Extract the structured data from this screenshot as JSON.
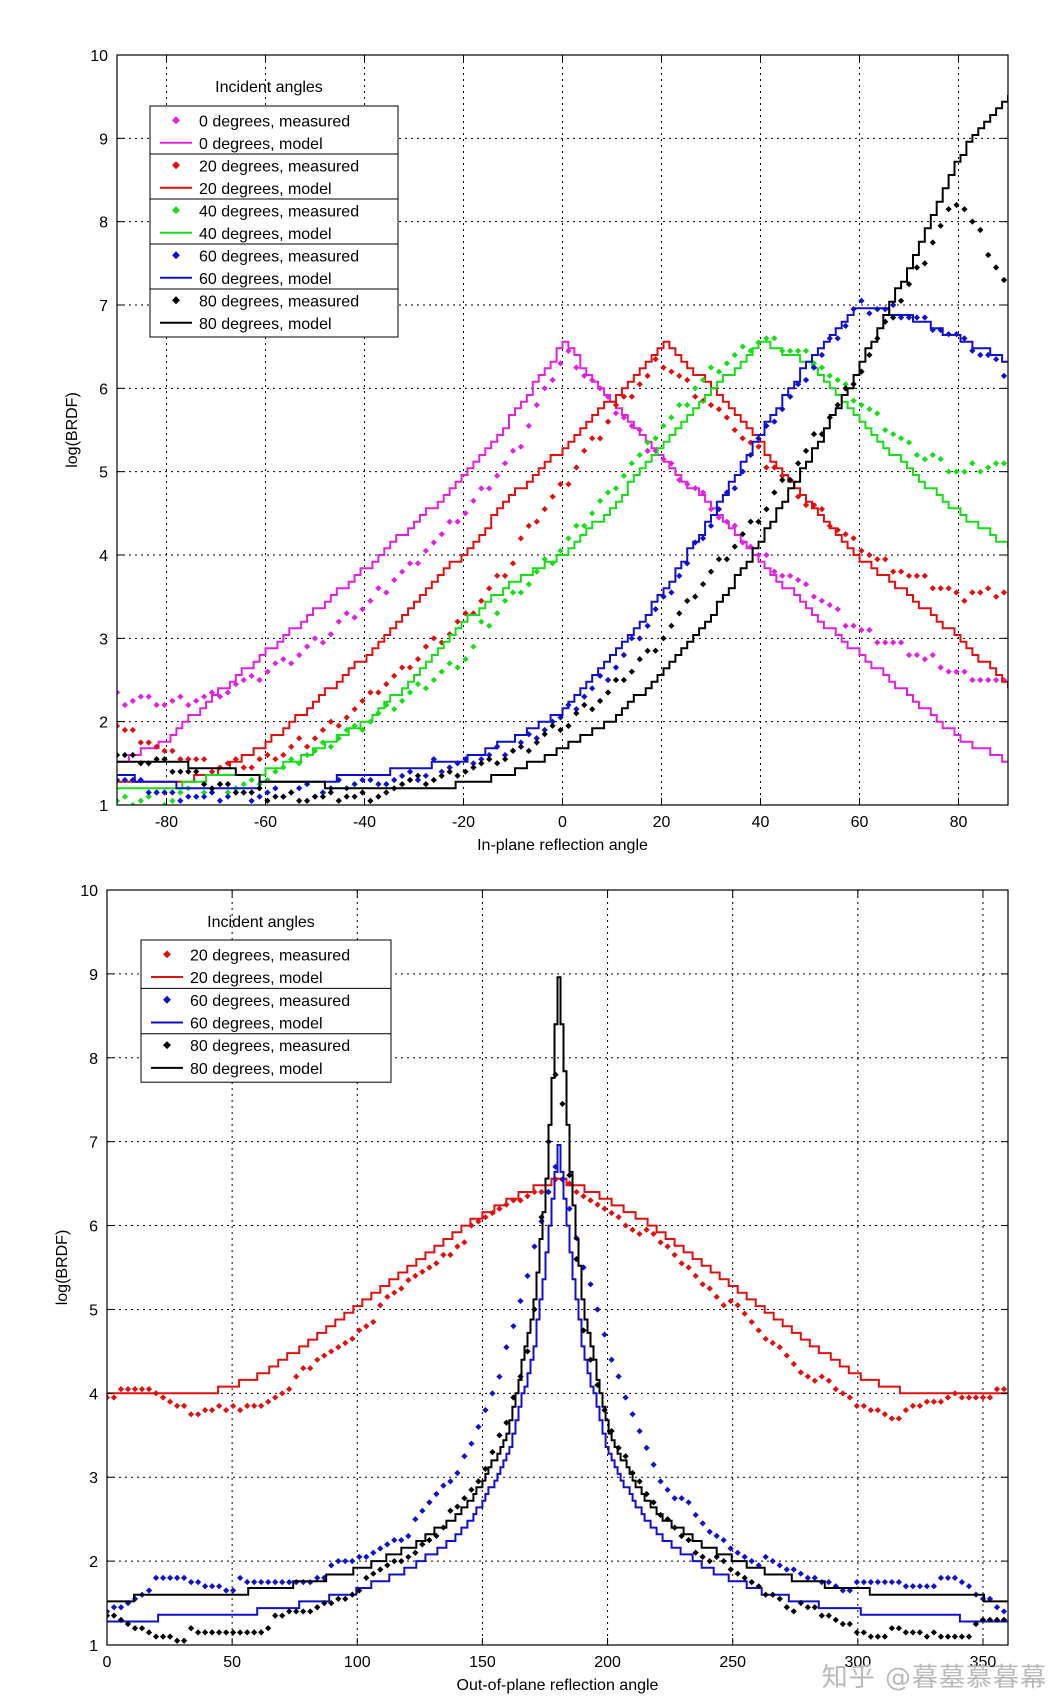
{
  "watermark": "知乎 @暮墓慕暮幕",
  "chart_data": [
    {
      "type": "line",
      "title": "",
      "xlabel": "In-plane reflection angle",
      "ylabel": "log(BRDF)",
      "xlim": [
        -90,
        90
      ],
      "ylim": [
        1,
        10
      ],
      "xticks": [
        -80,
        -60,
        -40,
        -20,
        0,
        20,
        40,
        60,
        80
      ],
      "yticks": [
        1,
        2,
        3,
        4,
        5,
        6,
        7,
        8,
        9,
        10
      ],
      "grid": true,
      "legend": {
        "title": "Incident angles",
        "placement": "top-left",
        "entries": [
          {
            "label": "0 degrees, measured",
            "color": "#e022e0",
            "style": "markers"
          },
          {
            "label": "0 degrees, model",
            "color": "#e022e0",
            "style": "line"
          },
          {
            "label": "20 degrees, measured",
            "color": "#e01010",
            "style": "markers"
          },
          {
            "label": "20 degrees, model",
            "color": "#e01010",
            "style": "line"
          },
          {
            "label": "40 degrees, measured",
            "color": "#18dd18",
            "style": "markers"
          },
          {
            "label": "40 degrees, model",
            "color": "#18dd18",
            "style": "line"
          },
          {
            "label": "60 degrees, measured",
            "color": "#1010cc",
            "style": "markers"
          },
          {
            "label": "60 degrees, model",
            "color": "#1010cc",
            "style": "line"
          },
          {
            "label": "80 degrees, measured",
            "color": "#000000",
            "style": "markers"
          },
          {
            "label": "80 degrees, model",
            "color": "#000000",
            "style": "line"
          }
        ]
      },
      "series": [
        {
          "name": "0 degrees, measured",
          "color": "#e022e0",
          "style": "markers",
          "x": [
            -90,
            -80,
            -70,
            -60,
            -50,
            -40,
            -30,
            -20,
            -10,
            0,
            10,
            20,
            30,
            40,
            50,
            60,
            70,
            80,
            90
          ],
          "y": [
            2.4,
            2.35,
            2.45,
            2.7,
            3.05,
            3.5,
            4.05,
            4.6,
            5.3,
            6.5,
            5.8,
            5.15,
            4.6,
            4.0,
            3.55,
            3.1,
            2.85,
            2.6,
            2.4
          ]
        },
        {
          "name": "0 degrees, model",
          "color": "#e022e0",
          "style": "line",
          "x": [
            -90,
            -80,
            -70,
            -60,
            -50,
            -40,
            -30,
            -20,
            -10,
            0,
            10,
            20,
            30,
            40,
            50,
            60,
            70,
            80,
            90
          ],
          "y": [
            1.5,
            1.8,
            2.35,
            2.85,
            3.35,
            3.85,
            4.4,
            4.95,
            5.7,
            6.55,
            5.8,
            5.15,
            4.55,
            3.9,
            3.3,
            2.8,
            2.3,
            1.8,
            1.5
          ]
        },
        {
          "name": "20 degrees, measured",
          "color": "#e01010",
          "style": "markers",
          "x": [
            -90,
            -80,
            -70,
            -60,
            -50,
            -40,
            -30,
            -20,
            -10,
            0,
            10,
            20,
            30,
            40,
            50,
            60,
            70,
            80,
            90
          ],
          "y": [
            2.1,
            1.75,
            1.55,
            1.65,
            1.95,
            2.35,
            2.85,
            3.35,
            4.05,
            4.8,
            5.7,
            6.35,
            5.8,
            5.2,
            4.6,
            4.1,
            3.75,
            3.5,
            3.6
          ]
        },
        {
          "name": "20 degrees, model",
          "color": "#e01010",
          "style": "line",
          "x": [
            -90,
            -80,
            -70,
            -60,
            -50,
            -40,
            -30,
            -20,
            -10,
            0,
            10,
            20,
            30,
            40,
            50,
            60,
            70,
            80,
            90
          ],
          "y": [
            1.3,
            1.25,
            1.4,
            1.75,
            2.25,
            2.8,
            3.45,
            4.05,
            4.75,
            5.3,
            5.9,
            6.55,
            6.0,
            5.3,
            4.55,
            3.95,
            3.5,
            3.0,
            2.4
          ]
        },
        {
          "name": "40 degrees, measured",
          "color": "#18dd18",
          "style": "markers",
          "x": [
            -90,
            -80,
            -70,
            -60,
            -50,
            -40,
            -30,
            -20,
            -10,
            0,
            10,
            20,
            30,
            40,
            50,
            60,
            70,
            80,
            90
          ],
          "y": [
            1.15,
            1.2,
            1.3,
            1.45,
            1.75,
            2.1,
            2.5,
            2.9,
            3.5,
            4.1,
            4.8,
            5.5,
            6.2,
            6.6,
            6.4,
            5.8,
            5.3,
            5.0,
            5.1
          ]
        },
        {
          "name": "40 degrees, model",
          "color": "#18dd18",
          "style": "line",
          "x": [
            -90,
            -80,
            -70,
            -60,
            -50,
            -40,
            -30,
            -20,
            -10,
            0,
            10,
            20,
            30,
            40,
            50,
            60,
            70,
            80,
            90
          ],
          "y": [
            1.2,
            1.2,
            1.35,
            1.4,
            1.65,
            2.0,
            2.55,
            3.2,
            3.7,
            4.0,
            4.6,
            5.35,
            6.0,
            6.55,
            6.3,
            5.6,
            5.0,
            4.5,
            4.1
          ]
        },
        {
          "name": "60 degrees, measured",
          "color": "#1010cc",
          "style": "markers",
          "x": [
            -90,
            -80,
            -70,
            -60,
            -50,
            -40,
            -30,
            -20,
            -10,
            0,
            10,
            20,
            30,
            40,
            50,
            60,
            70,
            80,
            90
          ],
          "y": [
            1.5,
            1.25,
            1.2,
            1.25,
            1.3,
            1.4,
            1.45,
            1.5,
            1.7,
            2.05,
            2.6,
            3.4,
            4.4,
            5.4,
            6.2,
            7.0,
            6.9,
            6.6,
            6.2
          ]
        },
        {
          "name": "60 degrees, model",
          "color": "#1010cc",
          "style": "line",
          "x": [
            -90,
            -80,
            -70,
            -60,
            -50,
            -40,
            -30,
            -20,
            -10,
            0,
            10,
            20,
            30,
            40,
            50,
            60,
            70,
            80,
            90
          ],
          "y": [
            1.35,
            1.25,
            1.2,
            1.25,
            1.3,
            1.35,
            1.45,
            1.55,
            1.8,
            2.15,
            2.8,
            3.55,
            4.5,
            5.5,
            6.4,
            7.0,
            6.85,
            6.6,
            6.3
          ]
        },
        {
          "name": "80 degrees, measured",
          "color": "#000000",
          "style": "markers",
          "x": [
            -90,
            -80,
            -70,
            -60,
            -50,
            -40,
            -30,
            -20,
            -10,
            0,
            10,
            20,
            30,
            40,
            50,
            60,
            70,
            80,
            90
          ],
          "y": [
            1.7,
            1.6,
            1.35,
            1.25,
            1.2,
            1.2,
            1.3,
            1.4,
            1.6,
            1.95,
            2.4,
            3.0,
            3.75,
            4.5,
            5.3,
            6.2,
            7.2,
            8.3,
            7.2
          ]
        },
        {
          "name": "80 degrees, model",
          "color": "#000000",
          "style": "line",
          "x": [
            -90,
            -80,
            -70,
            -60,
            -50,
            -40,
            -30,
            -20,
            -10,
            0,
            10,
            20,
            30,
            40,
            50,
            60,
            70,
            80,
            90
          ],
          "y": [
            1.55,
            1.5,
            1.45,
            1.3,
            1.25,
            1.2,
            1.2,
            1.25,
            1.4,
            1.7,
            2.05,
            2.6,
            3.3,
            4.2,
            5.2,
            6.3,
            7.5,
            8.8,
            9.55
          ]
        }
      ]
    },
    {
      "type": "line",
      "title": "",
      "xlabel": "Out-of-plane reflection angle",
      "ylabel": "log(BRDF)",
      "xlim": [
        0,
        360
      ],
      "ylim": [
        1,
        10
      ],
      "xticks": [
        0,
        50,
        100,
        150,
        200,
        250,
        300,
        350
      ],
      "yticks": [
        1,
        2,
        3,
        4,
        5,
        6,
        7,
        8,
        9,
        10
      ],
      "grid": true,
      "legend": {
        "title": "Incident angles",
        "placement": "top-left",
        "entries": [
          {
            "label": "20 degrees, measured",
            "color": "#e01010",
            "style": "markers"
          },
          {
            "label": "20 degrees, model",
            "color": "#e01010",
            "style": "line"
          },
          {
            "label": "60 degrees, measured",
            "color": "#1010cc",
            "style": "markers"
          },
          {
            "label": "60 degrees, model",
            "color": "#1010cc",
            "style": "line"
          },
          {
            "label": "80 degrees, measured",
            "color": "#000000",
            "style": "markers"
          },
          {
            "label": "80 degrees, model",
            "color": "#000000",
            "style": "line"
          }
        ]
      },
      "series": [
        {
          "name": "20 degrees, measured",
          "color": "#e01010",
          "style": "markers",
          "x": [
            0,
            20,
            40,
            60,
            80,
            100,
            120,
            140,
            160,
            170,
            180,
            190,
            200,
            220,
            240,
            260,
            280,
            300,
            320,
            340,
            360
          ],
          "y": [
            4.0,
            4.0,
            3.75,
            3.85,
            4.25,
            4.75,
            5.3,
            5.8,
            6.25,
            6.4,
            6.5,
            6.35,
            6.2,
            5.8,
            5.3,
            4.75,
            4.25,
            3.85,
            3.75,
            4.0,
            4.0
          ]
        },
        {
          "name": "20 degrees, model",
          "color": "#e01010",
          "style": "line",
          "x": [
            0,
            20,
            40,
            60,
            80,
            100,
            120,
            140,
            160,
            170,
            180,
            190,
            200,
            220,
            240,
            260,
            280,
            300,
            320,
            340,
            360
          ],
          "y": [
            4.0,
            4.0,
            4.0,
            4.2,
            4.6,
            5.05,
            5.5,
            5.95,
            6.3,
            6.45,
            6.55,
            6.45,
            6.3,
            5.95,
            5.5,
            5.05,
            4.6,
            4.2,
            4.0,
            4.0,
            4.0
          ]
        },
        {
          "name": "60 degrees, measured",
          "color": "#1010cc",
          "style": "markers",
          "x": [
            0,
            20,
            40,
            60,
            80,
            100,
            120,
            140,
            150,
            160,
            170,
            175,
            180,
            185,
            190,
            200,
            210,
            220,
            240,
            260,
            280,
            300,
            320,
            340,
            360
          ],
          "y": [
            1.4,
            1.75,
            1.75,
            1.7,
            1.8,
            2.0,
            2.35,
            3.05,
            3.75,
            4.5,
            5.6,
            6.2,
            6.85,
            6.2,
            5.6,
            4.5,
            3.75,
            3.05,
            2.35,
            2.0,
            1.8,
            1.7,
            1.75,
            1.75,
            1.4
          ]
        },
        {
          "name": "60 degrees, model",
          "color": "#1010cc",
          "style": "line",
          "x": [
            0,
            20,
            40,
            60,
            80,
            100,
            120,
            140,
            150,
            160,
            170,
            175,
            180,
            185,
            190,
            200,
            210,
            220,
            240,
            260,
            280,
            300,
            320,
            340,
            360
          ],
          "y": [
            1.3,
            1.32,
            1.35,
            1.4,
            1.5,
            1.65,
            1.9,
            2.3,
            2.7,
            3.3,
            4.5,
            5.6,
            7.0,
            5.6,
            4.5,
            3.3,
            2.7,
            2.3,
            1.9,
            1.65,
            1.5,
            1.4,
            1.35,
            1.32,
            1.3
          ]
        },
        {
          "name": "80 degrees, measured",
          "color": "#000000",
          "style": "markers",
          "x": [
            0,
            20,
            40,
            60,
            80,
            100,
            120,
            140,
            150,
            160,
            170,
            175,
            180,
            185,
            190,
            200,
            210,
            220,
            240,
            260,
            280,
            300,
            320,
            340,
            360
          ],
          "y": [
            1.3,
            1.15,
            1.1,
            1.2,
            1.4,
            1.7,
            2.05,
            2.6,
            3.0,
            3.7,
            4.8,
            6.5,
            8.0,
            6.5,
            4.8,
            3.7,
            3.0,
            2.6,
            2.05,
            1.7,
            1.4,
            1.2,
            1.1,
            1.15,
            1.3
          ]
        },
        {
          "name": "80 degrees, model",
          "color": "#000000",
          "style": "line",
          "x": [
            0,
            20,
            40,
            60,
            80,
            100,
            120,
            140,
            150,
            160,
            170,
            175,
            180,
            185,
            190,
            200,
            210,
            220,
            240,
            260,
            280,
            300,
            320,
            340,
            360
          ],
          "y": [
            1.55,
            1.57,
            1.6,
            1.65,
            1.75,
            1.9,
            2.15,
            2.55,
            2.95,
            3.55,
            5.0,
            6.5,
            9.0,
            6.5,
            5.0,
            3.55,
            2.95,
            2.55,
            2.15,
            1.9,
            1.75,
            1.65,
            1.6,
            1.57,
            1.55
          ]
        }
      ]
    }
  ]
}
